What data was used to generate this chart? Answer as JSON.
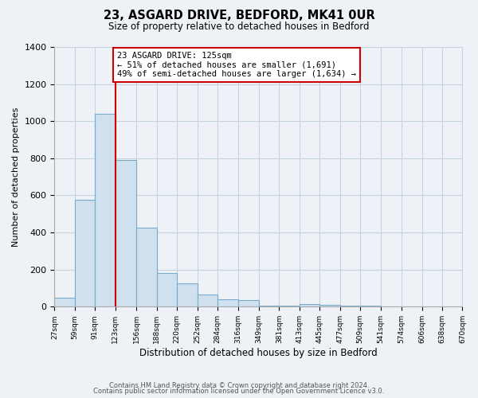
{
  "title": "23, ASGARD DRIVE, BEDFORD, MK41 0UR",
  "subtitle": "Size of property relative to detached houses in Bedford",
  "xlabel": "Distribution of detached houses by size in Bedford",
  "ylabel": "Number of detached properties",
  "bar_color": "#cfe0ef",
  "bar_edge_color": "#7aaaca",
  "bins": [
    27,
    59,
    91,
    123,
    156,
    188,
    220,
    252,
    284,
    316,
    349,
    381,
    413,
    445,
    477,
    509,
    541,
    574,
    606,
    638,
    670
  ],
  "bin_labels": [
    "27sqm",
    "59sqm",
    "91sqm",
    "123sqm",
    "156sqm",
    "188sqm",
    "220sqm",
    "252sqm",
    "284sqm",
    "316sqm",
    "349sqm",
    "381sqm",
    "413sqm",
    "445sqm",
    "477sqm",
    "509sqm",
    "541sqm",
    "574sqm",
    "606sqm",
    "638sqm",
    "670sqm"
  ],
  "values": [
    50,
    575,
    1040,
    790,
    425,
    180,
    125,
    65,
    40,
    35,
    5,
    5,
    15,
    10,
    5,
    5,
    3,
    2,
    1,
    1
  ],
  "property_line_x": 123,
  "property_label": "23 ASGARD DRIVE: 125sqm",
  "annotation_smaller": "← 51% of detached houses are smaller (1,691)",
  "annotation_larger": "49% of semi-detached houses are larger (1,634) →",
  "ylim": [
    0,
    1400
  ],
  "yticks": [
    0,
    200,
    400,
    600,
    800,
    1000,
    1200,
    1400
  ],
  "footer1": "Contains HM Land Registry data © Crown copyright and database right 2024.",
  "footer2": "Contains public sector information licensed under the Open Government Licence v3.0.",
  "background_color": "#eef2f7",
  "plot_background": "#eef2f7",
  "grid_color": "#c5d2df",
  "line_color": "#cc0000"
}
